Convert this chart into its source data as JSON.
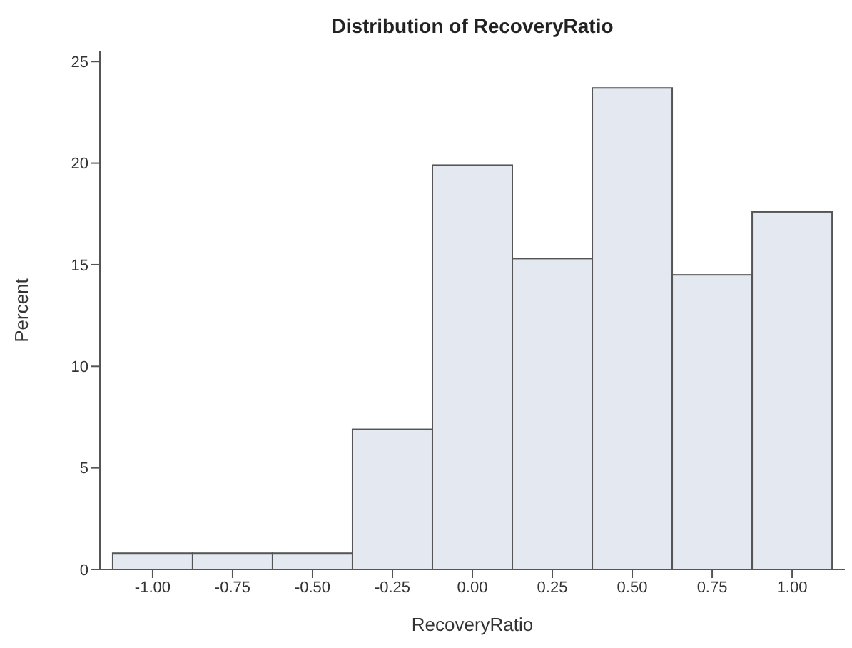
{
  "chart_data": {
    "type": "histogram",
    "title": "Distribution of RecoveryRatio",
    "xlabel": "RecoveryRatio",
    "ylabel": "Percent",
    "bins": [
      -1.125,
      -0.875,
      -0.625,
      -0.375,
      -0.125,
      0.125,
      0.375,
      0.625,
      0.875,
      1.125
    ],
    "values": [
      0.8,
      0.8,
      0.8,
      6.9,
      19.9,
      15.3,
      23.7,
      14.5,
      17.6
    ],
    "color": "#e3e8f1",
    "xlim": [
      -1.165,
      1.165
    ],
    "xticks": [
      {
        "value": -1,
        "label": "-1.00"
      },
      {
        "value": -0.75,
        "label": "-0.75"
      },
      {
        "value": -0.5,
        "label": "-0.50"
      },
      {
        "value": -0.25,
        "label": "-0.25"
      },
      {
        "value": 0,
        "label": "0.00"
      },
      {
        "value": 0.25,
        "label": "0.25"
      },
      {
        "value": 0.5,
        "label": "0.50"
      },
      {
        "value": 0.75,
        "label": "0.75"
      },
      {
        "value": 1,
        "label": "1.00"
      }
    ],
    "ylim": [
      0,
      25.5
    ],
    "yticks": [
      0,
      5,
      10,
      15,
      20,
      25
    ]
  }
}
